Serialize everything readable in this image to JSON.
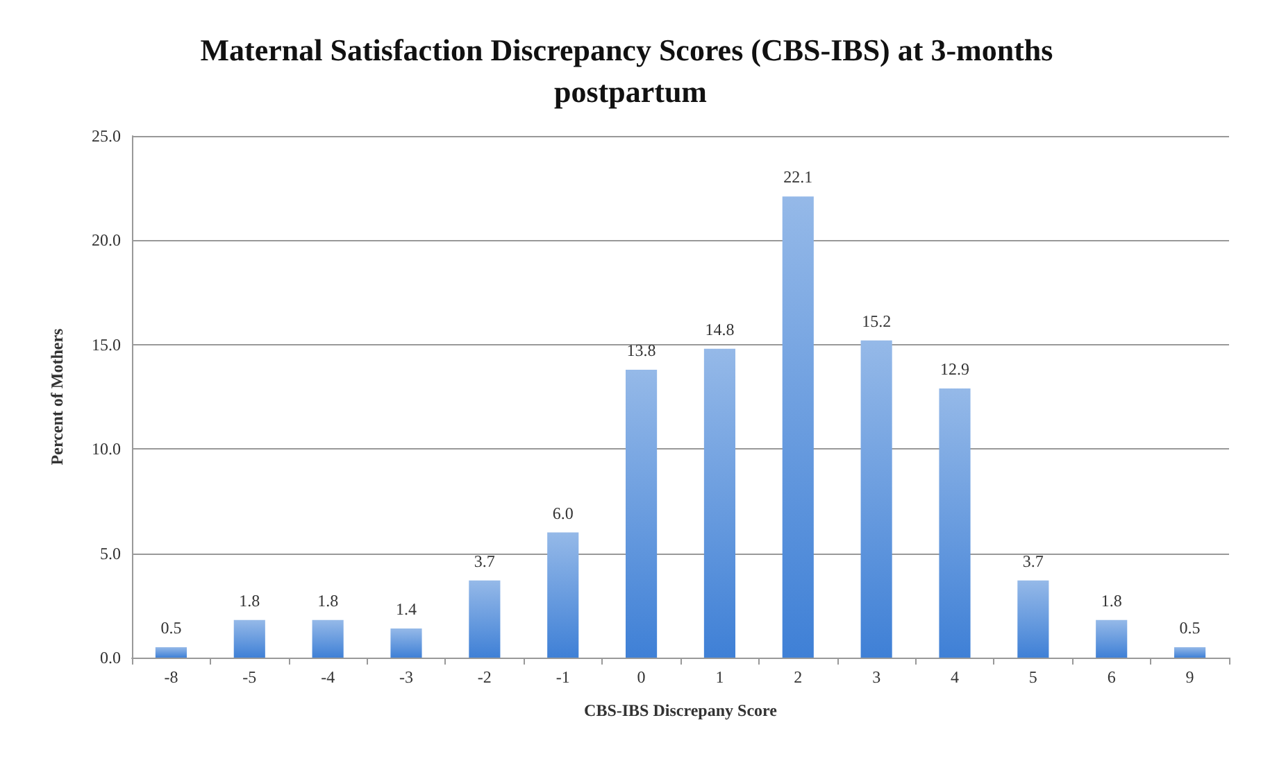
{
  "chart_data": {
    "type": "bar",
    "title": "Maternal Satisfaction Discrepancy Scores (CBS-IBS) at 3-months postpartum",
    "xlabel": "CBS-IBS Discrepany Score",
    "ylabel": "Percent of Mothers",
    "categories": [
      "-8",
      "-5",
      "-4",
      "-3",
      "-2",
      "-1",
      "0",
      "1",
      "2",
      "3",
      "4",
      "5",
      "6",
      "9"
    ],
    "values": [
      0.5,
      1.8,
      1.8,
      1.4,
      3.7,
      6.0,
      13.8,
      14.8,
      22.1,
      15.2,
      12.9,
      3.7,
      1.8,
      0.5
    ],
    "value_labels": [
      "0.5",
      "1.8",
      "1.8",
      "1.4",
      "3.7",
      "6.0",
      "13.8",
      "14.8",
      "22.1",
      "15.2",
      "12.9",
      "3.7",
      "1.8",
      "0.5"
    ],
    "color": "#3f80d6",
    "ylim": [
      0,
      25
    ],
    "yticks": [
      {
        "value": 0,
        "label": "0.0"
      },
      {
        "value": 5,
        "label": "5.0"
      },
      {
        "value": 10,
        "label": "10.0"
      },
      {
        "value": 15,
        "label": "15.0"
      },
      {
        "value": 20,
        "label": "20.0"
      },
      {
        "value": 25,
        "label": "25.0"
      }
    ],
    "grid": "y"
  }
}
